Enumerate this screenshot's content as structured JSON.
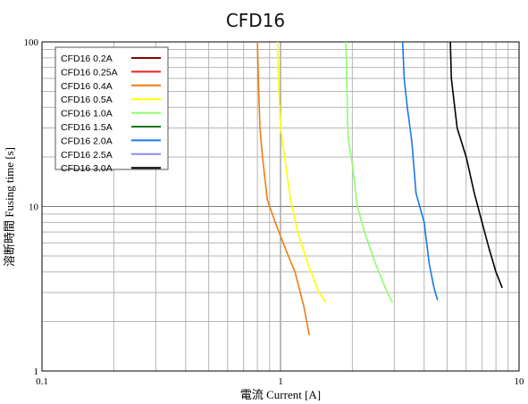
{
  "chart_data": {
    "type": "line",
    "title": "CFD16",
    "xlabel": "電流 Current [A]",
    "ylabel": "溶断時間 Fusing time [s]",
    "xscale": "log",
    "yscale": "log",
    "xlim": [
      0.1,
      10
    ],
    "ylim": [
      1,
      100
    ],
    "x_tick_labels": [
      "0.1",
      "1",
      "10"
    ],
    "y_tick_labels": [
      "1",
      "10",
      "100"
    ],
    "grid": true,
    "legend_position": "top-left",
    "series": [
      {
        "name": "CFD16 0.2A",
        "color": "#8b0000",
        "points": []
      },
      {
        "name": "CFD16 0.25A",
        "color": "#e8201a",
        "points": []
      },
      {
        "name": "CFD16 0.4A",
        "color": "#f07d12",
        "points": [
          [
            0.8,
            100
          ],
          [
            0.81,
            50
          ],
          [
            0.82,
            30
          ],
          [
            0.84,
            20
          ],
          [
            0.88,
            11
          ],
          [
            0.95,
            8
          ],
          [
            1.05,
            5.5
          ],
          [
            1.15,
            4
          ],
          [
            1.25,
            2.5
          ],
          [
            1.32,
            1.65
          ]
        ]
      },
      {
        "name": "CFD16 0.5A",
        "color": "#ffff00",
        "points": [
          [
            0.97,
            100
          ],
          [
            0.98,
            60
          ],
          [
            1.0,
            30
          ],
          [
            1.05,
            18
          ],
          [
            1.1,
            11
          ],
          [
            1.18,
            7
          ],
          [
            1.3,
            4.5
          ],
          [
            1.45,
            3
          ],
          [
            1.55,
            2.6
          ]
        ]
      },
      {
        "name": "CFD16 1.0A",
        "color": "#8cff6a",
        "points": [
          [
            1.88,
            100
          ],
          [
            1.9,
            50
          ],
          [
            1.92,
            26
          ],
          [
            2.0,
            18
          ],
          [
            2.1,
            10
          ],
          [
            2.25,
            7
          ],
          [
            2.5,
            4.5
          ],
          [
            2.75,
            3.2
          ],
          [
            2.95,
            2.6
          ]
        ]
      },
      {
        "name": "CFD16 1.5A",
        "color": "#0a7a0a",
        "points": []
      },
      {
        "name": "CFD16 2.0A",
        "color": "#1a78e6",
        "points": [
          [
            3.25,
            100
          ],
          [
            3.3,
            60
          ],
          [
            3.4,
            40
          ],
          [
            3.55,
            25
          ],
          [
            3.7,
            12
          ],
          [
            4.0,
            8
          ],
          [
            4.2,
            4.5
          ],
          [
            4.4,
            3.2
          ],
          [
            4.55,
            2.7
          ]
        ]
      },
      {
        "name": "CFD16 2.5A",
        "color": "#8a8af0",
        "points": []
      },
      {
        "name": "CFD16 3.0A",
        "color": "#000000",
        "points": [
          [
            5.15,
            100
          ],
          [
            5.2,
            60
          ],
          [
            5.5,
            30
          ],
          [
            6.0,
            20
          ],
          [
            6.5,
            12
          ],
          [
            7.0,
            8
          ],
          [
            7.5,
            5.5
          ],
          [
            8.0,
            4
          ],
          [
            8.5,
            3.2
          ]
        ]
      }
    ]
  }
}
